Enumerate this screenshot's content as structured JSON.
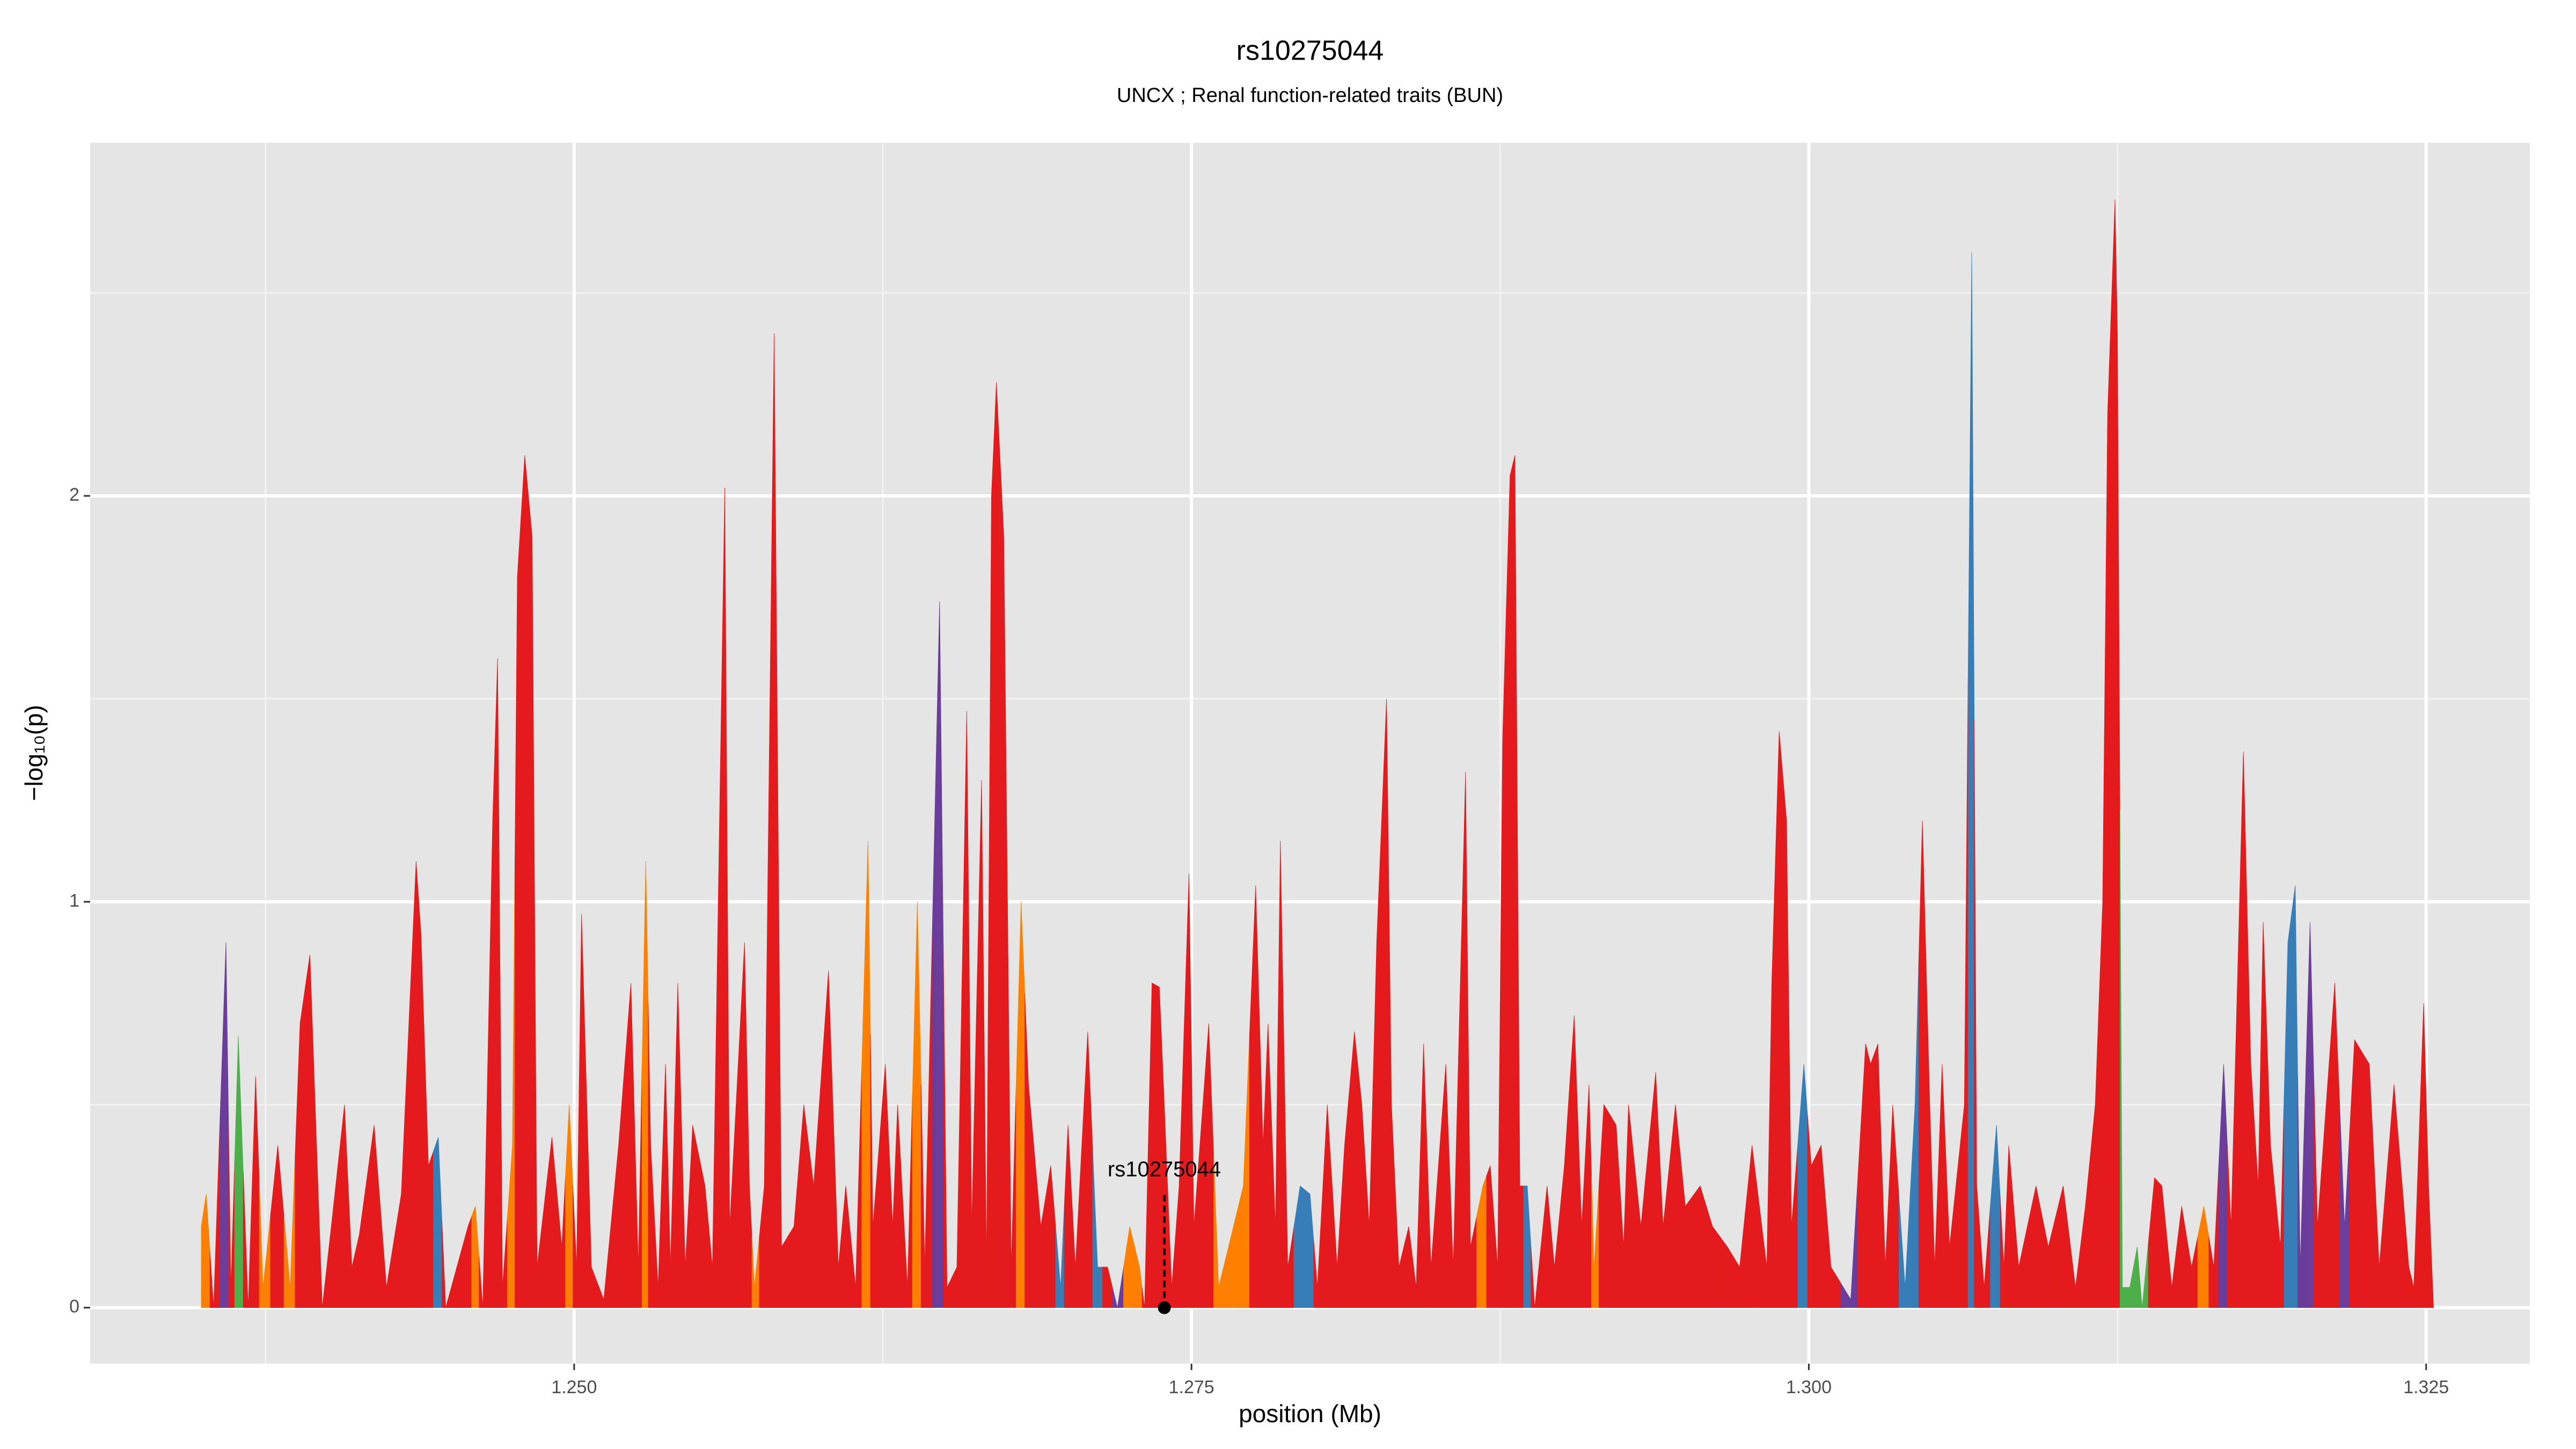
{
  "chart_data": {
    "type": "area",
    "title": "rs10275044",
    "subtitle": "UNCX ; Renal function-related traits (BUN)",
    "xlabel": "position (Mb)",
    "ylabel": "−log₁₀(p)",
    "xlim": [
      1.2304,
      1.3292
    ],
    "ylim": [
      -0.138,
      2.87
    ],
    "xticks": [
      {
        "value": 1.25,
        "label": "1.250"
      },
      {
        "value": 1.275,
        "label": "1.275"
      },
      {
        "value": 1.3,
        "label": "1.300"
      },
      {
        "value": 1.325,
        "label": "1.325"
      }
    ],
    "yticks": [
      0,
      1,
      2
    ],
    "minor_xticks": [
      1.2375,
      1.2625,
      1.2875,
      1.3125
    ],
    "minor_yticks": [
      0.5,
      1.5,
      2.5
    ],
    "grid": true,
    "annotation": {
      "text": "rs10275044",
      "x": 1.2739,
      "y": 0
    },
    "x": [
      1.2349,
      1.2351,
      1.2354,
      1.2359,
      1.2361,
      1.2364,
      1.2368,
      1.2371,
      1.2374,
      1.238,
      1.2385,
      1.2389,
      1.2393,
      1.2398,
      1.2402,
      1.2407,
      1.241,
      1.2413,
      1.2419,
      1.2424,
      1.243,
      1.2436,
      1.2438,
      1.2441,
      1.2445,
      1.2448,
      1.2457,
      1.246,
      1.2463,
      1.2467,
      1.2469,
      1.2471,
      1.2475,
      1.2477,
      1.248,
      1.2483,
      1.2485,
      1.2491,
      1.2495,
      1.2498,
      1.2501,
      1.2503,
      1.2507,
      1.2512,
      1.2518,
      1.2523,
      1.2526,
      1.2529,
      1.2531,
      1.2534,
      1.2537,
      1.2539,
      1.2542,
      1.2545,
      1.2548,
      1.2553,
      1.2556,
      1.2561,
      1.2563,
      1.2569,
      1.2571,
      1.2573,
      1.2577,
      1.2581,
      1.2584,
      1.2589,
      1.2593,
      1.2597,
      1.2603,
      1.2607,
      1.261,
      1.2614,
      1.2619,
      1.2621,
      1.2626,
      1.2629,
      1.2631,
      1.2635,
      1.2639,
      1.2642,
      1.2648,
      1.2651,
      1.2655,
      1.2659,
      1.2661,
      1.2665,
      1.2667,
      1.2669,
      1.2671,
      1.2674,
      1.2677,
      1.2681,
      1.2684,
      1.2689,
      1.2693,
      1.2697,
      1.27,
      1.2703,
      1.2708,
      1.2712,
      1.2716,
      1.272,
      1.2725,
      1.2729,
      1.2731,
      1.2734,
      1.2737,
      1.2739,
      1.2742,
      1.2745,
      1.2749,
      1.2751,
      1.2757,
      1.2761,
      1.2767,
      1.2771,
      1.2776,
      1.2779,
      1.2781,
      1.2784,
      1.2786,
      1.2789,
      1.2794,
      1.2798,
      1.2801,
      1.2805,
      1.2809,
      1.2812,
      1.2816,
      1.2819,
      1.2822,
      1.2825,
      1.2829,
      1.2831,
      1.2834,
      1.2838,
      1.2841,
      1.2844,
      1.2847,
      1.2853,
      1.2856,
      1.2861,
      1.2863,
      1.2868,
      1.2871,
      1.2874,
      1.2876,
      1.2879,
      1.2881,
      1.2883,
      1.2886,
      1.2889,
      1.2894,
      1.2897,
      1.2901,
      1.2905,
      1.2908,
      1.2911,
      1.2913,
      1.2917,
      1.2922,
      1.2925,
      1.2927,
      1.2932,
      1.2938,
      1.2941,
      1.2946,
      1.295,
      1.2956,
      1.2961,
      1.2967,
      1.2972,
      1.2977,
      1.2983,
      1.2985,
      1.2988,
      1.2991,
      1.2993,
      1.2998,
      1.3001,
      1.3005,
      1.3009,
      1.3017,
      1.3023,
      1.3025,
      1.3028,
      1.3031,
      1.3034,
      1.3039,
      1.3043,
      1.3046,
      1.3049,
      1.3051,
      1.3054,
      1.3057,
      1.3063,
      1.3066,
      1.3068,
      1.3071,
      1.3076,
      1.3079,
      1.3081,
      1.3085,
      1.3092,
      1.3097,
      1.3103,
      1.3108,
      1.3112,
      1.3116,
      1.3119,
      1.3121,
      1.3124,
      1.3125,
      1.3127,
      1.313,
      1.3133,
      1.3135,
      1.314,
      1.3143,
      1.3147,
      1.3151,
      1.3155,
      1.316,
      1.3164,
      1.3168,
      1.3171,
      1.3176,
      1.3179,
      1.3182,
      1.3184,
      1.3187,
      1.3191,
      1.3194,
      1.3197,
      1.3199,
      1.3203,
      1.3206,
      1.3213,
      1.3217,
      1.3221,
      1.3227,
      1.3231,
      1.3237,
      1.3243,
      1.3245,
      1.3249,
      1.3251,
      1.3253
    ],
    "values": [
      0.2,
      0.28,
      0,
      0.9,
      0.05,
      0.67,
      0,
      0.57,
      0.05,
      0.4,
      0.05,
      0.7,
      0.87,
      0,
      0.22,
      0.5,
      0.1,
      0.18,
      0.45,
      0.05,
      0.28,
      1.1,
      0.92,
      0.35,
      0.42,
      0,
      0.2,
      0.25,
      0,
      1.2,
      1.6,
      0.05,
      0.4,
      1.8,
      2.1,
      1.9,
      0.1,
      0.42,
      0.15,
      0.5,
      0.1,
      0.97,
      0.1,
      0.02,
      0.4,
      0.8,
      0.1,
      1.1,
      0.4,
      0.05,
      0.6,
      0.1,
      0.8,
      0.1,
      0.45,
      0.3,
      0.1,
      2.02,
      0.2,
      0.9,
      0.3,
      0.05,
      0.3,
      2.4,
      0.15,
      0.2,
      0.5,
      0.3,
      0.83,
      0.1,
      0.3,
      0.05,
      1.15,
      0.2,
      0.6,
      0.2,
      0.5,
      0.05,
      1.0,
      0.1,
      1.74,
      0.05,
      0.1,
      1.47,
      0.2,
      1.3,
      0.1,
      2.0,
      2.28,
      1.9,
      0.1,
      1.0,
      0.55,
      0.2,
      0.35,
      0.05,
      0.45,
      0.1,
      0.68,
      0.1,
      0.1,
      0,
      0.2,
      0.1,
      0,
      0.8,
      0.79,
      0.5,
      0.05,
      0.3,
      1.07,
      0.2,
      0.7,
      0.05,
      0.2,
      0.3,
      1.04,
      0.4,
      0.7,
      0.2,
      1.15,
      0.1,
      0.3,
      0.28,
      0.05,
      0.5,
      0.1,
      0.4,
      0.68,
      0.5,
      0.2,
      0.9,
      1.5,
      0.5,
      0.1,
      0.2,
      0.05,
      0.65,
      0.1,
      0.6,
      0.1,
      1.32,
      0.15,
      0.3,
      0.35,
      0.1,
      1.4,
      2.05,
      2.1,
      0.3,
      0.3,
      0,
      0.3,
      0.1,
      0.35,
      0.72,
      0.2,
      0.55,
      0.1,
      0.5,
      0.45,
      0.15,
      0.5,
      0.2,
      0.58,
      0.2,
      0.5,
      0.25,
      0.3,
      0.2,
      0.15,
      0.1,
      0.4,
      0.1,
      0.8,
      1.42,
      1.2,
      0.2,
      0.6,
      0.35,
      0.4,
      0.1,
      0.02,
      0.65,
      0.6,
      0.65,
      0.1,
      0.5,
      0.05,
      0.5,
      1.2,
      0.5,
      0.1,
      0.6,
      0.15,
      0.5,
      2.6,
      0.3,
      0.05,
      0.45,
      0.1,
      0.4,
      0.1,
      0.3,
      0.15,
      0.3,
      0.05,
      0.25,
      0.5,
      1.0,
      2.2,
      2.73,
      2.4,
      0.05,
      0.05,
      0.15,
      0,
      0.32,
      0.3,
      0.05,
      0.25,
      0.1,
      0.25,
      0.1,
      0.6,
      0.2,
      1.37,
      0.6,
      0.3,
      0.95,
      0.4,
      0.15,
      0.9,
      1.04,
      0.1,
      0.95,
      0.2,
      0.8,
      0.2,
      0.66,
      0.6,
      0.1,
      0.55,
      0.1,
      0.05,
      0.75,
      0.3,
      0
    ],
    "colors": [
      "#ff7f00",
      "#ff7f00",
      "#e41a1c",
      "#6a3d9a",
      "#e41a1c",
      "#4daf4a",
      "#e41a1c",
      "#e41a1c",
      "#ff7f00",
      "#e41a1c",
      "#ff7f00",
      "#e41a1c",
      "#e41a1c",
      "#e41a1c",
      "#e41a1c",
      "#e41a1c",
      "#e41a1c",
      "#e41a1c",
      "#e41a1c",
      "#e41a1c",
      "#e41a1c",
      "#e41a1c",
      "#e41a1c",
      "#e41a1c",
      "#377eb8",
      "#e41a1c",
      "#e41a1c",
      "#ff7f00",
      "#e41a1c",
      "#e41a1c",
      "#e41a1c",
      "#e41a1c",
      "#ff7f00",
      "#e41a1c",
      "#e41a1c",
      "#e41a1c",
      "#e41a1c",
      "#e41a1c",
      "#e41a1c",
      "#ff7f00",
      "#e41a1c",
      "#e41a1c",
      "#e41a1c",
      "#e41a1c",
      "#e41a1c",
      "#e41a1c",
      "#e41a1c",
      "#ff7f00",
      "#e41a1c",
      "#e41a1c",
      "#e41a1c",
      "#e41a1c",
      "#e41a1c",
      "#e41a1c",
      "#e41a1c",
      "#e41a1c",
      "#e41a1c",
      "#e41a1c",
      "#e41a1c",
      "#e41a1c",
      "#e41a1c",
      "#ff7f00",
      "#e41a1c",
      "#e41a1c",
      "#e41a1c",
      "#e41a1c",
      "#e41a1c",
      "#e41a1c",
      "#e41a1c",
      "#e41a1c",
      "#e41a1c",
      "#e41a1c",
      "#ff7f00",
      "#e41a1c",
      "#e41a1c",
      "#e41a1c",
      "#e41a1c",
      "#e41a1c",
      "#ff7f00",
      "#e41a1c",
      "#6a3d9a",
      "#e41a1c",
      "#e41a1c",
      "#e41a1c",
      "#e41a1c",
      "#e41a1c",
      "#e41a1c",
      "#e41a1c",
      "#e41a1c",
      "#e41a1c",
      "#e41a1c",
      "#ff7f00",
      "#e41a1c",
      "#e41a1c",
      "#e41a1c",
      "#377eb8",
      "#e41a1c",
      "#e41a1c",
      "#e41a1c",
      "#377eb8",
      "#e41a1c",
      "#6a3d9a",
      "#ff7f00",
      "#ff7f00",
      "#e41a1c",
      "#e41a1c",
      "#e41a1c",
      "#e41a1c",
      "#e41a1c",
      "#e41a1c",
      "#e41a1c",
      "#e41a1c",
      "#e41a1c",
      "#ff7f00",
      "#ff7f00",
      "#ff7f00",
      "#e41a1c",
      "#e41a1c",
      "#e41a1c",
      "#e41a1c",
      "#e41a1c",
      "#e41a1c",
      "#377eb8",
      "#377eb8",
      "#e41a1c",
      "#e41a1c",
      "#e41a1c",
      "#e41a1c",
      "#e41a1c",
      "#e41a1c",
      "#e41a1c",
      "#e41a1c",
      "#e41a1c",
      "#e41a1c",
      "#e41a1c",
      "#e41a1c",
      "#e41a1c",
      "#e41a1c",
      "#e41a1c",
      "#e41a1c",
      "#e41a1c",
      "#e41a1c",
      "#e41a1c",
      "#ff7f00",
      "#e41a1c",
      "#e41a1c",
      "#e41a1c",
      "#e41a1c",
      "#e41a1c",
      "#e41a1c",
      "#377eb8",
      "#e41a1c",
      "#e41a1c",
      "#e41a1c",
      "#e41a1c",
      "#e41a1c",
      "#e41a1c",
      "#e41a1c",
      "#ff7f00",
      "#e41a1c",
      "#e41a1c",
      "#e41a1c",
      "#e41a1c",
      "#e41a1c",
      "#e41a1c",
      "#e41a1c",
      "#e41a1c",
      "#e41a1c",
      "#e41a1c",
      "#e41a1c",
      "#e41a1c",
      "#e41a1c",
      "#e41a1c",
      "#e41a1c",
      "#e41a1c",
      "#e41a1c",
      "#e41a1c",
      "#e41a1c",
      "#377eb8",
      "#e41a1c",
      "#e41a1c",
      "#e41a1c",
      "#6a3d9a",
      "#e41a1c",
      "#e41a1c",
      "#e41a1c",
      "#e41a1c",
      "#e41a1c",
      "#377eb8",
      "#377eb8",
      "#e41a1c",
      "#e41a1c",
      "#e41a1c",
      "#e41a1c",
      "#e41a1c",
      "#e41a1c",
      "#377eb8",
      "#e41a1c",
      "#e41a1c",
      "#377eb8",
      "#e41a1c",
      "#e41a1c",
      "#e41a1c",
      "#e41a1c",
      "#e41a1c",
      "#e41a1c",
      "#e41a1c",
      "#e41a1c",
      "#e41a1c",
      "#e41a1c",
      "#e41a1c",
      "#e41a1c",
      "#e41a1c",
      "#4daf4a",
      "#4daf4a",
      "#4daf4a",
      "#4daf4a",
      "#e41a1c",
      "#e41a1c",
      "#e41a1c",
      "#e41a1c",
      "#e41a1c",
      "#ff7f00",
      "#e41a1c",
      "#6a3d9a",
      "#e41a1c",
      "#e41a1c",
      "#e41a1c",
      "#e41a1c",
      "#e41a1c",
      "#e41a1c",
      "#e41a1c",
      "#377eb8",
      "#377eb8",
      "#6a3d9a",
      "#6a3d9a",
      "#e41a1c",
      "#e41a1c",
      "#6a3d9a",
      "#e41a1c",
      "#e41a1c",
      "#e41a1c",
      "#e41a1c",
      "#e41a1c",
      "#e41a1c",
      "#e41a1c",
      "#e41a1c",
      "#e41a1c"
    ]
  }
}
